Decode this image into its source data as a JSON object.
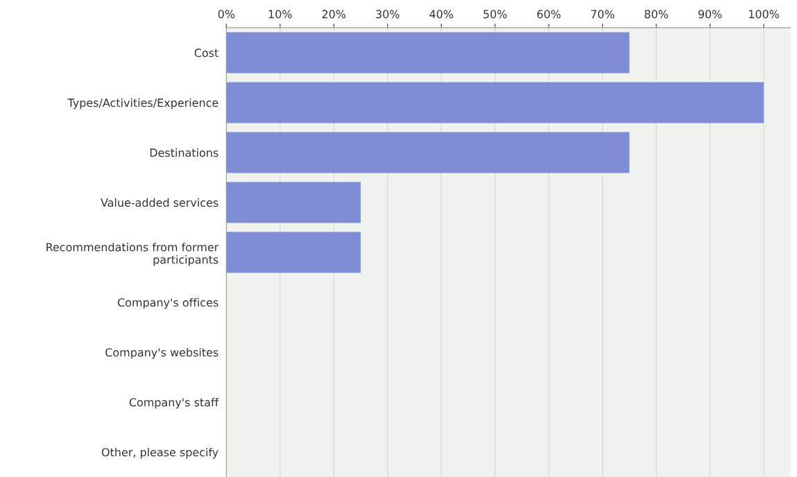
{
  "chart_data": {
    "type": "bar",
    "orientation": "horizontal",
    "categories": [
      "Cost",
      "Types/Activities/Experience",
      "Destinations",
      "Value-added services",
      "Recommendations from former\nparticipants",
      "Company's offices",
      "Company's websites",
      "Company's staff",
      "Other, please specify"
    ],
    "values": [
      75,
      100,
      75,
      25,
      25,
      0,
      0,
      0,
      0
    ],
    "color": "#7d8dd6",
    "xlim": [
      0,
      105
    ],
    "xticks": [
      {
        "value": 0,
        "label": "0%"
      },
      {
        "value": 10,
        "label": "10%"
      },
      {
        "value": 20,
        "label": "20%"
      },
      {
        "value": 30,
        "label": "30%"
      },
      {
        "value": 40,
        "label": "40%"
      },
      {
        "value": 50,
        "label": "50%"
      },
      {
        "value": 60,
        "label": "60%"
      },
      {
        "value": 70,
        "label": "70%"
      },
      {
        "value": 80,
        "label": "80%"
      },
      {
        "value": 90,
        "label": "90%"
      },
      {
        "value": 100,
        "label": "100%"
      }
    ],
    "grid": "x",
    "legend": false
  }
}
